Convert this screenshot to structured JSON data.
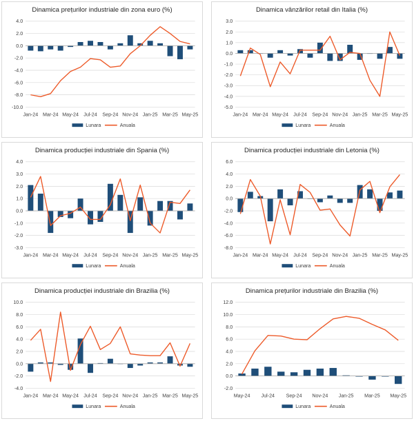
{
  "colors": {
    "lunara": "#1f4e79",
    "anuala": "#ed5a29",
    "grid": "#d9d9d9",
    "axis": "#a6a6a6"
  },
  "legend_labels": {
    "monthly": "Lunara",
    "annual": "Anuala"
  },
  "chart_data": [
    {
      "id": "c1",
      "type": "bar+line",
      "title": "Dinamica prețurilor industriale din zona euro (%)",
      "categories": [
        "Jan-24",
        "Feb-24",
        "Mar-24",
        "Apr-24",
        "May-24",
        "Jun-24",
        "Jul-24",
        "Aug-24",
        "Sep-24",
        "Oct-24",
        "Nov-24",
        "Dec-24",
        "Jan-25",
        "Feb-25",
        "Mar-25",
        "Apr-25",
        "May-25"
      ],
      "xtick_labels": [
        "Jan-24",
        "Mar-24",
        "May-24",
        "Jul-24",
        "Sep-24",
        "Nov-24",
        "Jan-25",
        "Mar-25",
        "May-25"
      ],
      "ylim": [
        -10,
        4
      ],
      "yticks": [
        -10,
        -8,
        -6,
        -4,
        -2,
        0,
        2,
        4
      ],
      "ytick_labels": [
        "-10.0",
        "-8.0",
        "-6.0",
        "-4.0",
        "-2.0",
        "0.0",
        "2.0",
        "4.0"
      ],
      "series": [
        {
          "name": "Lunara",
          "kind": "bar",
          "values": [
            -0.8,
            -0.9,
            -0.6,
            -0.8,
            -0.2,
            0.6,
            0.8,
            0.6,
            -0.6,
            0.4,
            1.7,
            0.4,
            0.8,
            0.4,
            -1.7,
            -2.2,
            -0.6
          ]
        },
        {
          "name": "Anuala",
          "kind": "line",
          "values": [
            -8.0,
            -8.3,
            -7.8,
            -5.7,
            -4.2,
            -3.5,
            -2.1,
            -2.3,
            -3.5,
            -3.3,
            -1.3,
            0.0,
            1.7,
            3.1,
            2.0,
            0.7,
            0.3
          ]
        }
      ]
    },
    {
      "id": "c2",
      "type": "bar+line",
      "title": "Dinamica vânzărilor retail din Italia (%)",
      "categories": [
        "Jan-24",
        "Feb-24",
        "Mar-24",
        "Apr-24",
        "May-24",
        "Jun-24",
        "Jul-24",
        "Aug-24",
        "Sep-24",
        "Oct-24",
        "Nov-24",
        "Dec-24",
        "Jan-25",
        "Feb-25",
        "Mar-25",
        "Apr-25",
        "May-25"
      ],
      "xtick_labels": [
        "Jan-24",
        "Mar-24",
        "May-24",
        "Jul-24",
        "Sep-24",
        "Nov-24",
        "Jan-25",
        "Mar-25",
        "May-25"
      ],
      "ylim": [
        -5,
        3
      ],
      "yticks": [
        -5,
        -4,
        -3,
        -2,
        -1,
        0,
        1,
        2,
        3
      ],
      "ytick_labels": [
        "-5.0",
        "-4.0",
        "-3.0",
        "-2.0",
        "-1.0",
        "0.0",
        "1.0",
        "2.0",
        "3.0"
      ],
      "series": [
        {
          "name": "Lunara",
          "kind": "bar",
          "values": [
            0.3,
            0.3,
            0.0,
            -0.4,
            0.3,
            -0.2,
            0.4,
            -0.4,
            1.0,
            -0.7,
            -0.7,
            0.8,
            -0.6,
            0.0,
            -0.5,
            0.6,
            -0.5
          ]
        },
        {
          "name": "Anuala",
          "kind": "line",
          "values": [
            -2.1,
            0.5,
            -0.1,
            -3.1,
            -0.8,
            -1.9,
            0.3,
            0.3,
            0.3,
            1.6,
            -0.6,
            0.1,
            0.0,
            -2.5,
            -4.0,
            2.0,
            -0.2
          ]
        }
      ]
    },
    {
      "id": "c3",
      "type": "bar+line",
      "title": "Dinamica producției industriale din Spania (%)",
      "categories": [
        "Jan-24",
        "Feb-24",
        "Mar-24",
        "Apr-24",
        "May-24",
        "Jun-24",
        "Jul-24",
        "Aug-24",
        "Sep-24",
        "Oct-24",
        "Nov-24",
        "Dec-24",
        "Jan-25",
        "Feb-25",
        "Mar-25",
        "Apr-25",
        "May-25"
      ],
      "xtick_labels": [
        "Jan-24",
        "Mar-24",
        "May-24",
        "Jul-24",
        "Sep-24",
        "Nov-24",
        "Jan-25",
        "Mar-25",
        "May-25"
      ],
      "ylim": [
        -3,
        4
      ],
      "yticks": [
        -3,
        -2,
        -1,
        0,
        1,
        2,
        3,
        4
      ],
      "ytick_labels": [
        "-3.0",
        "-2.0",
        "-1.0",
        "0.0",
        "1.0",
        "2.0",
        "3.0",
        "4.0"
      ],
      "series": [
        {
          "name": "Lunara",
          "kind": "bar",
          "values": [
            2.1,
            1.4,
            -1.8,
            -0.5,
            -0.6,
            1.0,
            -1.1,
            -0.9,
            2.2,
            1.3,
            -1.8,
            1.1,
            -1.2,
            0.8,
            0.8,
            -0.7,
            0.6
          ]
        },
        {
          "name": "Anuala",
          "kind": "line",
          "values": [
            1.1,
            2.8,
            -1.2,
            -0.4,
            -0.2,
            0.3,
            -0.7,
            -0.7,
            0.5,
            2.6,
            -0.8,
            2.1,
            -1.0,
            -1.8,
            0.7,
            0.6,
            1.7
          ]
        }
      ]
    },
    {
      "id": "c4",
      "type": "bar+line",
      "title": "Dinamica producției industriale din Letonia (%)",
      "categories": [
        "Jan-24",
        "Feb-24",
        "Mar-24",
        "Apr-24",
        "May-24",
        "Jun-24",
        "Jul-24",
        "Aug-24",
        "Sep-24",
        "Oct-24",
        "Nov-24",
        "Dec-24",
        "Jan-25",
        "Feb-25",
        "Mar-25",
        "Apr-25",
        "May-25"
      ],
      "xtick_labels": [
        "Jan-24",
        "Mar-24",
        "May-24",
        "Jul-24",
        "Sep-24",
        "Nov-24",
        "Jan-25",
        "Mar-25",
        "May-25"
      ],
      "ylim": [
        -8,
        6
      ],
      "yticks": [
        -8,
        -6,
        -4,
        -2,
        0,
        2,
        4,
        6
      ],
      "ytick_labels": [
        "-8.0",
        "-6.0",
        "-4.0",
        "-2.0",
        "0.0",
        "2.0",
        "4.0",
        "6.0"
      ],
      "series": [
        {
          "name": "Lunara",
          "kind": "bar",
          "values": [
            -2.2,
            1.1,
            0.4,
            -3.7,
            1.5,
            -1.1,
            1.2,
            0.0,
            -0.6,
            0.5,
            -0.7,
            -0.7,
            2.2,
            1.5,
            -2.0,
            1.0,
            1.3
          ]
        },
        {
          "name": "Anuala",
          "kind": "line",
          "values": [
            -2.5,
            3.1,
            0.4,
            -7.4,
            -0.2,
            -5.9,
            2.3,
            1.0,
            -1.9,
            -1.7,
            -4.3,
            -6.1,
            1.4,
            2.8,
            -2.3,
            1.9,
            3.9
          ]
        }
      ]
    },
    {
      "id": "c5",
      "type": "bar+line",
      "title": "Dinamica producției industriale din Brazilia (%)",
      "categories": [
        "Jan-24",
        "Feb-24",
        "Mar-24",
        "Apr-24",
        "May-24",
        "Jun-24",
        "Jul-24",
        "Aug-24",
        "Sep-24",
        "Oct-24",
        "Nov-24",
        "Dec-24",
        "Jan-25",
        "Feb-25",
        "Mar-25",
        "Apr-25",
        "May-25"
      ],
      "xtick_labels": [
        "Jan-24",
        "Mar-24",
        "May-24",
        "Jul-24",
        "Sep-24",
        "Nov-24",
        "Jan-25",
        "Mar-25",
        "May-25"
      ],
      "ylim": [
        -4,
        10
      ],
      "yticks": [
        -4,
        -2,
        0,
        2,
        4,
        6,
        8,
        10
      ],
      "ytick_labels": [
        "-4.0",
        "-2.0",
        "0.0",
        "2.0",
        "4.0",
        "6.0",
        "8.0",
        "10.0"
      ],
      "series": [
        {
          "name": "Lunara",
          "kind": "bar",
          "values": [
            -1.3,
            0.2,
            0.2,
            -0.2,
            -1.0,
            4.1,
            -1.5,
            0.1,
            0.8,
            0.0,
            -0.7,
            -0.3,
            0.2,
            0.2,
            1.2,
            -0.3,
            -0.5
          ]
        },
        {
          "name": "Anuala",
          "kind": "line",
          "values": [
            3.8,
            5.6,
            -2.9,
            8.4,
            -1.1,
            3.1,
            6.1,
            2.3,
            3.3,
            6.0,
            1.6,
            1.4,
            1.3,
            1.3,
            3.4,
            -0.4,
            3.3
          ]
        }
      ]
    },
    {
      "id": "c6",
      "type": "bar+line",
      "title": "Dinamica prețurilor industriale din Brazilia (%)",
      "categories": [
        "May-24",
        "Jun-24",
        "Jul-24",
        "Aug-24",
        "Sep-24",
        "Oct-24",
        "Nov-24",
        "Dec-24",
        "Jan-25",
        "Feb-25",
        "Mar-25",
        "Apr-25",
        "May-25"
      ],
      "xtick_labels": [
        "May-24",
        "Jul-24",
        "Sep-24",
        "Nov-24",
        "Jan-25",
        "Mar-25",
        "May-25"
      ],
      "ylim": [
        -2,
        12
      ],
      "yticks": [
        -2,
        0,
        2,
        4,
        6,
        8,
        10,
        12
      ],
      "ytick_labels": [
        "-2.0",
        "0.0",
        "2.0",
        "4.0",
        "6.0",
        "8.0",
        "10.0",
        "12.0"
      ],
      "series": [
        {
          "name": "Lunara",
          "kind": "bar",
          "values": [
            0.4,
            1.2,
            1.5,
            0.7,
            0.6,
            1.0,
            1.2,
            1.3,
            0.1,
            -0.1,
            -0.6,
            -0.1,
            -1.3
          ]
        },
        {
          "name": "Anuala",
          "kind": "line",
          "values": [
            0.3,
            4.1,
            6.6,
            6.5,
            6.0,
            5.9,
            7.7,
            9.3,
            9.7,
            9.4,
            8.4,
            7.5,
            5.8
          ]
        }
      ]
    }
  ]
}
